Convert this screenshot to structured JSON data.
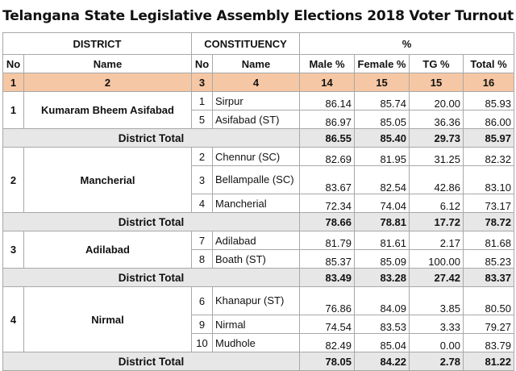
{
  "title": "Telangana State Legislative Assembly Elections 2018 Voter Turnout",
  "header": {
    "district": "DISTRICT",
    "constituency": "CONSTITUENCY",
    "percent": "%",
    "no": "No",
    "name": "Name",
    "male": "Male %",
    "female": "Female %",
    "tg": "TG %",
    "total": "Total %"
  },
  "col_numbers": [
    "1",
    "2",
    "3",
    "4",
    "14",
    "15",
    "15",
    "16"
  ],
  "district_total_label": "District Total",
  "districts": [
    {
      "no": "1",
      "name": "Kumaram Bheem Asifabad",
      "constituencies": [
        {
          "no": "1",
          "name": "Sirpur",
          "male": "86.14",
          "female": "85.74",
          "tg": "20.00",
          "total": "85.93"
        },
        {
          "no": "5",
          "name": "Asifabad (ST)",
          "male": "86.97",
          "female": "85.05",
          "tg": "36.36",
          "total": "86.00"
        }
      ],
      "totals": {
        "male": "86.55",
        "female": "85.40",
        "tg": "29.73",
        "total": "85.97"
      }
    },
    {
      "no": "2",
      "name": "Mancherial",
      "constituencies": [
        {
          "no": "2",
          "name": "Chennur (SC)",
          "male": "82.69",
          "female": "81.95",
          "tg": "31.25",
          "total": "82.32"
        },
        {
          "no": "3",
          "name": "Bellampalle (SC)",
          "male": "83.67",
          "female": "82.54",
          "tg": "42.86",
          "total": "83.10"
        },
        {
          "no": "4",
          "name": "Mancherial",
          "male": "72.34",
          "female": "74.04",
          "tg": "6.12",
          "total": "73.17"
        }
      ],
      "totals": {
        "male": "78.66",
        "female": "78.81",
        "tg": "17.72",
        "total": "78.72"
      }
    },
    {
      "no": "3",
      "name": "Adilabad",
      "constituencies": [
        {
          "no": "7",
          "name": "Adilabad",
          "male": "81.79",
          "female": "81.61",
          "tg": "2.17",
          "total": "81.68"
        },
        {
          "no": "8",
          "name": "Boath (ST)",
          "male": "85.37",
          "female": "85.09",
          "tg": "100.00",
          "total": "85.23"
        }
      ],
      "totals": {
        "male": "83.49",
        "female": "83.28",
        "tg": "27.42",
        "total": "83.37"
      }
    },
    {
      "no": "4",
      "name": "Nirmal",
      "constituencies": [
        {
          "no": "6",
          "name": "Khanapur (ST)",
          "male": "76.86",
          "female": "84.09",
          "tg": "3.85",
          "total": "80.50"
        },
        {
          "no": "9",
          "name": "Nirmal",
          "male": "74.54",
          "female": "83.53",
          "tg": "3.33",
          "total": "79.27"
        },
        {
          "no": "10",
          "name": "Mudhole",
          "male": "82.49",
          "female": "85.04",
          "tg": "0.00",
          "total": "83.79"
        }
      ],
      "totals": {
        "male": "78.05",
        "female": "84.22",
        "tg": "2.78",
        "total": "81.22"
      }
    }
  ]
}
